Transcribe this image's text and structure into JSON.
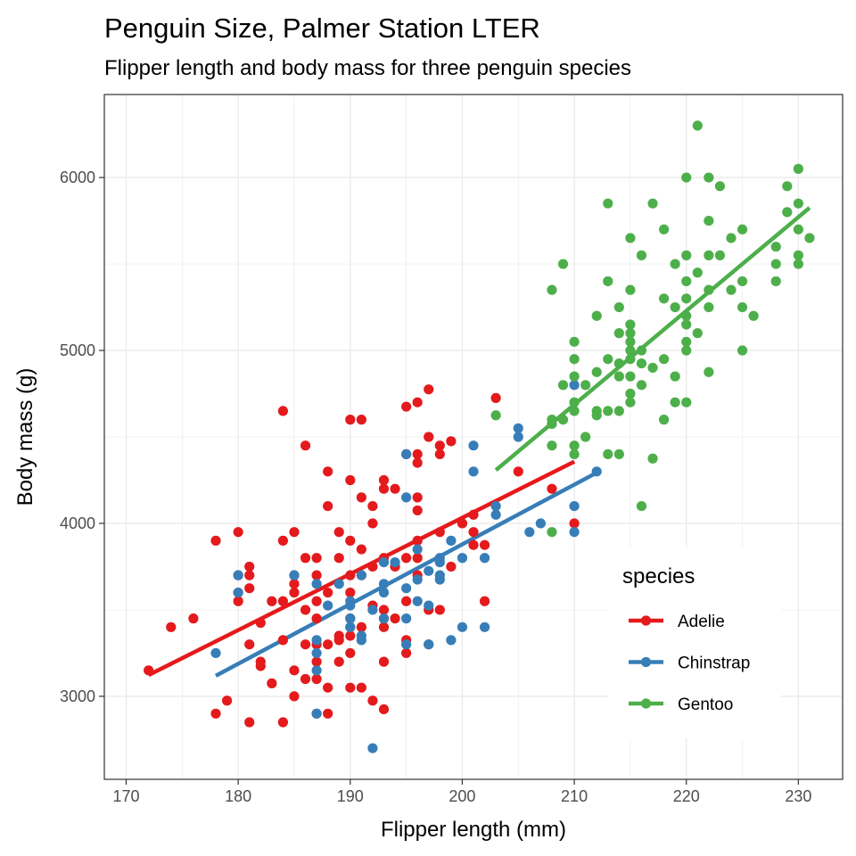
{
  "chart_data": {
    "type": "scatter",
    "title": "Penguin Size, Palmer Station LTER",
    "subtitle": "Flipper length and body mass for three penguin species",
    "xlabel": "Flipper length (mm)",
    "ylabel": "Body mass (g)",
    "xlim": [
      168.05,
      233.95
    ],
    "ylim": [
      2520,
      6480
    ],
    "x_ticks": [
      170,
      180,
      190,
      200,
      210,
      220,
      230
    ],
    "y_ticks": [
      3000,
      4000,
      5000,
      6000
    ],
    "grid": true,
    "legend": {
      "title": "species",
      "position": "right-inside-bottom"
    },
    "colors": {
      "Adelie": "#E41A1C",
      "Chinstrap": "#377EB8",
      "Gentoo": "#4DAF4A",
      "panel_border": "#333333",
      "grid": "#ebebeb"
    },
    "series": [
      {
        "name": "Adelie",
        "fit": [
          [
            172,
            3123
          ],
          [
            210,
            4357
          ]
        ],
        "points": [
          [
            172,
            3150
          ],
          [
            174,
            3400
          ],
          [
            176,
            3450
          ],
          [
            178,
            2900
          ],
          [
            178,
            3900
          ],
          [
            179,
            2975
          ],
          [
            180,
            3550
          ],
          [
            180,
            3600
          ],
          [
            180,
            3700
          ],
          [
            180,
            3950
          ],
          [
            181,
            2850
          ],
          [
            181,
            3300
          ],
          [
            181,
            3625
          ],
          [
            181,
            3700
          ],
          [
            181,
            3750
          ],
          [
            182,
            3175
          ],
          [
            182,
            3200
          ],
          [
            182,
            3425
          ],
          [
            183,
            3075
          ],
          [
            183,
            3550
          ],
          [
            184,
            2850
          ],
          [
            184,
            3325
          ],
          [
            184,
            3550
          ],
          [
            184,
            3900
          ],
          [
            184,
            4650
          ],
          [
            185,
            3000
          ],
          [
            185,
            3150
          ],
          [
            185,
            3600
          ],
          [
            185,
            3650
          ],
          [
            185,
            3700
          ],
          [
            185,
            3950
          ],
          [
            186,
            3100
          ],
          [
            186,
            3300
          ],
          [
            186,
            3500
          ],
          [
            186,
            3800
          ],
          [
            186,
            4450
          ],
          [
            187,
            2900
          ],
          [
            187,
            3100
          ],
          [
            187,
            3200
          ],
          [
            187,
            3300
          ],
          [
            187,
            3450
          ],
          [
            187,
            3550
          ],
          [
            187,
            3700
          ],
          [
            187,
            3800
          ],
          [
            188,
            2900
          ],
          [
            188,
            3050
          ],
          [
            188,
            3300
          ],
          [
            188,
            3600
          ],
          [
            188,
            4100
          ],
          [
            188,
            4300
          ],
          [
            189,
            3200
          ],
          [
            189,
            3325
          ],
          [
            189,
            3350
          ],
          [
            189,
            3800
          ],
          [
            189,
            3950
          ],
          [
            190,
            3050
          ],
          [
            190,
            3250
          ],
          [
            190,
            3350
          ],
          [
            190,
            3450
          ],
          [
            190,
            3600
          ],
          [
            190,
            3700
          ],
          [
            190,
            3900
          ],
          [
            190,
            4250
          ],
          [
            190,
            4600
          ],
          [
            191,
            3050
          ],
          [
            191,
            3400
          ],
          [
            191,
            3700
          ],
          [
            191,
            4150
          ],
          [
            191,
            4600
          ],
          [
            191,
            3850
          ],
          [
            192,
            2975
          ],
          [
            192,
            3525
          ],
          [
            192,
            3750
          ],
          [
            192,
            4000
          ],
          [
            192,
            4100
          ],
          [
            193,
            2925
          ],
          [
            193,
            3200
          ],
          [
            193,
            3400
          ],
          [
            193,
            3450
          ],
          [
            193,
            3500
          ],
          [
            193,
            3800
          ],
          [
            193,
            4200
          ],
          [
            193,
            4250
          ],
          [
            194,
            3450
          ],
          [
            194,
            3750
          ],
          [
            194,
            4200
          ],
          [
            195,
            3250
          ],
          [
            195,
            3325
          ],
          [
            195,
            3550
          ],
          [
            195,
            3800
          ],
          [
            195,
            4400
          ],
          [
            195,
            4675
          ],
          [
            196,
            3700
          ],
          [
            196,
            3800
          ],
          [
            196,
            3900
          ],
          [
            196,
            4075
          ],
          [
            196,
            4150
          ],
          [
            196,
            4350
          ],
          [
            196,
            4400
          ],
          [
            196,
            4700
          ],
          [
            197,
            3300
          ],
          [
            197,
            3500
          ],
          [
            197,
            4500
          ],
          [
            197,
            4775
          ],
          [
            198,
            3500
          ],
          [
            198,
            3950
          ],
          [
            198,
            4400
          ],
          [
            198,
            4450
          ],
          [
            199,
            3750
          ],
          [
            199,
            4475
          ],
          [
            200,
            4000
          ],
          [
            201,
            3875
          ],
          [
            201,
            3950
          ],
          [
            201,
            4050
          ],
          [
            202,
            3550
          ],
          [
            202,
            3875
          ],
          [
            203,
            4725
          ],
          [
            205,
            4300
          ],
          [
            208,
            4200
          ],
          [
            210,
            4000
          ]
        ]
      },
      {
        "name": "Chinstrap",
        "fit": [
          [
            178,
            3119
          ],
          [
            212,
            4293
          ]
        ],
        "points": [
          [
            178,
            3250
          ],
          [
            180,
            3700
          ],
          [
            180,
            3600
          ],
          [
            185,
            3700
          ],
          [
            187,
            3650
          ],
          [
            187,
            3250
          ],
          [
            187,
            3325
          ],
          [
            187,
            2900
          ],
          [
            187,
            3150
          ],
          [
            188,
            3525
          ],
          [
            189,
            3650
          ],
          [
            190,
            3450
          ],
          [
            190,
            3400
          ],
          [
            190,
            3550
          ],
          [
            190,
            3525
          ],
          [
            190,
            3400
          ],
          [
            191,
            3325
          ],
          [
            191,
            3350
          ],
          [
            191,
            3700
          ],
          [
            192,
            2700
          ],
          [
            192,
            3500
          ],
          [
            193,
            3775
          ],
          [
            193,
            3650
          ],
          [
            193,
            3450
          ],
          [
            193,
            3600
          ],
          [
            194,
            3775
          ],
          [
            195,
            3300
          ],
          [
            195,
            4150
          ],
          [
            195,
            3450
          ],
          [
            195,
            3625
          ],
          [
            195,
            4400
          ],
          [
            196,
            3550
          ],
          [
            196,
            3675
          ],
          [
            196,
            3850
          ],
          [
            197,
            3525
          ],
          [
            197,
            3725
          ],
          [
            197,
            3300
          ],
          [
            198,
            3800
          ],
          [
            198,
            3675
          ],
          [
            198,
            3775
          ],
          [
            198,
            3700
          ],
          [
            199,
            3325
          ],
          [
            199,
            3900
          ],
          [
            200,
            3400
          ],
          [
            200,
            3800
          ],
          [
            201,
            4300
          ],
          [
            201,
            4450
          ],
          [
            202,
            3800
          ],
          [
            202,
            3400
          ],
          [
            203,
            4100
          ],
          [
            203,
            4050
          ],
          [
            205,
            4550
          ],
          [
            205,
            4500
          ],
          [
            206,
            3950
          ],
          [
            207,
            4000
          ],
          [
            210,
            4800
          ],
          [
            210,
            3950
          ],
          [
            210,
            4100
          ],
          [
            212,
            4300
          ]
        ]
      },
      {
        "name": "Gentoo",
        "fit": [
          [
            203,
            4308
          ],
          [
            231,
            5825
          ]
        ],
        "points": [
          [
            203,
            4625
          ],
          [
            208,
            3950
          ],
          [
            208,
            4450
          ],
          [
            208,
            4575
          ],
          [
            208,
            4600
          ],
          [
            208,
            5350
          ],
          [
            209,
            4600
          ],
          [
            209,
            4800
          ],
          [
            209,
            5500
          ],
          [
            210,
            4400
          ],
          [
            210,
            4450
          ],
          [
            210,
            4650
          ],
          [
            210,
            4700
          ],
          [
            210,
            4850
          ],
          [
            210,
            4950
          ],
          [
            210,
            5050
          ],
          [
            211,
            4500
          ],
          [
            211,
            4800
          ],
          [
            212,
            4625
          ],
          [
            212,
            4650
          ],
          [
            212,
            4875
          ],
          [
            212,
            5200
          ],
          [
            213,
            4400
          ],
          [
            213,
            4650
          ],
          [
            213,
            4950
          ],
          [
            213,
            5400
          ],
          [
            213,
            5850
          ],
          [
            214,
            4400
          ],
          [
            214,
            4650
          ],
          [
            214,
            4850
          ],
          [
            214,
            4925
          ],
          [
            214,
            5100
          ],
          [
            214,
            5250
          ],
          [
            215,
            4700
          ],
          [
            215,
            4750
          ],
          [
            215,
            4850
          ],
          [
            215,
            4950
          ],
          [
            215,
            5000
          ],
          [
            215,
            5050
          ],
          [
            215,
            5100
          ],
          [
            215,
            5150
          ],
          [
            215,
            5350
          ],
          [
            215,
            5650
          ],
          [
            216,
            4100
          ],
          [
            216,
            4800
          ],
          [
            216,
            4925
          ],
          [
            216,
            5000
          ],
          [
            216,
            5550
          ],
          [
            217,
            4375
          ],
          [
            217,
            4900
          ],
          [
            217,
            5850
          ],
          [
            218,
            4600
          ],
          [
            218,
            4950
          ],
          [
            218,
            5300
          ],
          [
            218,
            5700
          ],
          [
            219,
            4700
          ],
          [
            219,
            4850
          ],
          [
            219,
            5250
          ],
          [
            219,
            5500
          ],
          [
            220,
            4700
          ],
          [
            220,
            5000
          ],
          [
            220,
            5050
          ],
          [
            220,
            5150
          ],
          [
            220,
            5200
          ],
          [
            220,
            5300
          ],
          [
            220,
            5400
          ],
          [
            220,
            5550
          ],
          [
            220,
            6000
          ],
          [
            221,
            5100
          ],
          [
            221,
            5450
          ],
          [
            221,
            6300
          ],
          [
            222,
            4875
          ],
          [
            222,
            5250
          ],
          [
            222,
            5350
          ],
          [
            222,
            5550
          ],
          [
            222,
            5750
          ],
          [
            222,
            6000
          ],
          [
            223,
            5550
          ],
          [
            223,
            5950
          ],
          [
            224,
            5350
          ],
          [
            224,
            5650
          ],
          [
            225,
            5000
          ],
          [
            225,
            5250
          ],
          [
            225,
            5400
          ],
          [
            225,
            5700
          ],
          [
            226,
            5200
          ],
          [
            228,
            5400
          ],
          [
            228,
            5500
          ],
          [
            228,
            5600
          ],
          [
            229,
            5800
          ],
          [
            229,
            5950
          ],
          [
            230,
            5500
          ],
          [
            230,
            5550
          ],
          [
            230,
            5700
          ],
          [
            230,
            5850
          ],
          [
            230,
            6050
          ],
          [
            231,
            5650
          ]
        ]
      }
    ]
  }
}
